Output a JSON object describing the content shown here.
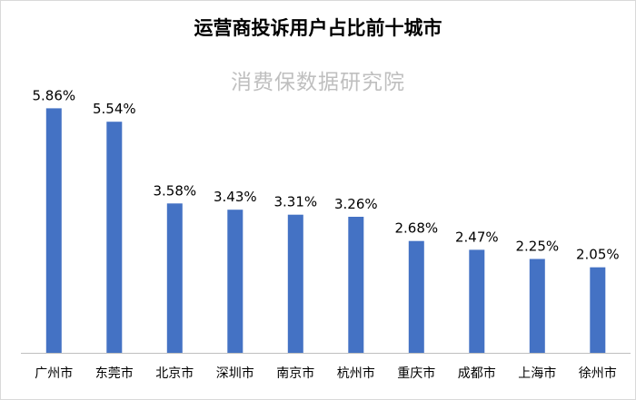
{
  "chart_data": {
    "type": "bar",
    "title": "运营商投诉用户占比前十城市",
    "subtitle": "消费保数据研究院",
    "categories": [
      "广州市",
      "东莞市",
      "北京市",
      "深圳市",
      "南京市",
      "杭州市",
      "重庆市",
      "成都市",
      "上海市",
      "徐州市"
    ],
    "values": [
      5.86,
      5.54,
      3.58,
      3.43,
      3.31,
      3.26,
      2.68,
      2.47,
      2.25,
      2.05
    ],
    "value_labels": [
      "5.86%",
      "5.54%",
      "3.58%",
      "3.43%",
      "3.31%",
      "3.26%",
      "2.68%",
      "2.47%",
      "2.25%",
      "2.05%"
    ],
    "xlabel": "",
    "ylabel": "",
    "ylim": [
      0,
      7
    ],
    "grid": false,
    "bar_color": "#4472C4",
    "axis_color": "#bfbfbf"
  }
}
